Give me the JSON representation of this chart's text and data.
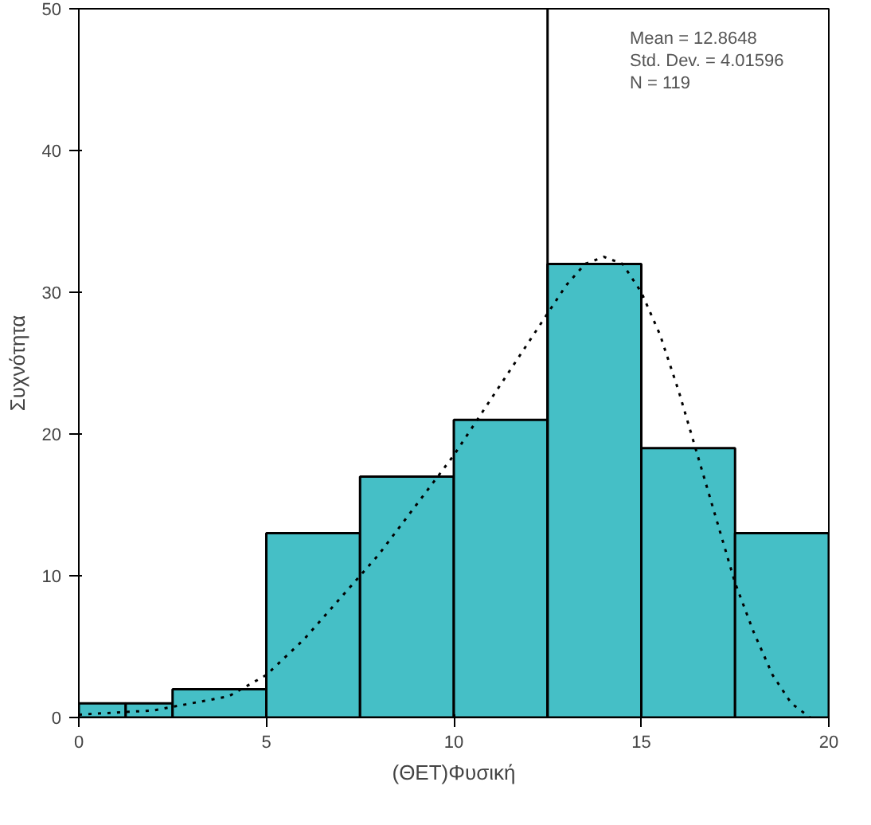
{
  "chart_data": {
    "type": "histogram",
    "xlabel": "(ΘΕΤ)Φυσική",
    "ylabel": "Συχνότητα",
    "bins": [
      0,
      1.25,
      2.5,
      5,
      7.5,
      10,
      12.5,
      15,
      17.5,
      20
    ],
    "values": [
      1,
      1,
      2,
      13,
      17,
      21,
      32,
      19,
      13
    ],
    "color": "#45bfc6",
    "series": [
      {
        "type": "line",
        "line_style": "dotted",
        "color": "#000000",
        "x": [
          0,
          2,
          4,
          5,
          6,
          7,
          8,
          9,
          10,
          11,
          12,
          13,
          13.5,
          14,
          14.5,
          15,
          15.5,
          16,
          16.5,
          17,
          17.5,
          18,
          18.5,
          19,
          19.5
        ],
        "values": [
          0.2,
          0.5,
          1.5,
          3,
          5.5,
          8.5,
          11.5,
          15,
          18.5,
          22.5,
          26.5,
          30.5,
          32,
          32.5,
          32,
          30,
          27,
          23,
          18.5,
          14,
          9.5,
          6,
          3,
          1,
          0
        ]
      }
    ],
    "ref_lines": [
      {
        "axis": "x",
        "value": 12.5,
        "color": "#000000"
      }
    ],
    "xlim": [
      0,
      20
    ],
    "xticks": [
      0,
      5,
      10,
      15,
      20
    ],
    "ylim": [
      0,
      50
    ],
    "yticks": [
      0,
      10,
      20,
      30,
      40,
      50
    ],
    "grid": false,
    "annotations": [
      "Mean = 12.8648",
      "Std. Dev. = 4.01596",
      "N = 119"
    ]
  }
}
